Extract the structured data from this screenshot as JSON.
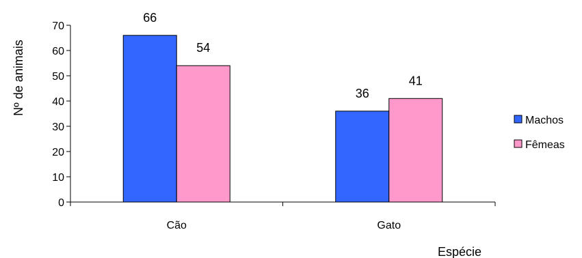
{
  "chart_data": {
    "type": "bar",
    "categories": [
      "Cão",
      "Gato"
    ],
    "series": [
      {
        "name": "Machos",
        "values": [
          66,
          36
        ],
        "color": "#3366FF"
      },
      {
        "name": "Fêmeas",
        "values": [
          54,
          41
        ],
        "color": "#FF99CC"
      }
    ],
    "xlabel": "Espécie",
    "ylabel": "Nº de animais",
    "ylim": [
      0,
      70
    ],
    "yticks": [
      0,
      10,
      20,
      30,
      40,
      50,
      60,
      70
    ],
    "grid": false,
    "legend_position": "right",
    "data_labels": true
  }
}
